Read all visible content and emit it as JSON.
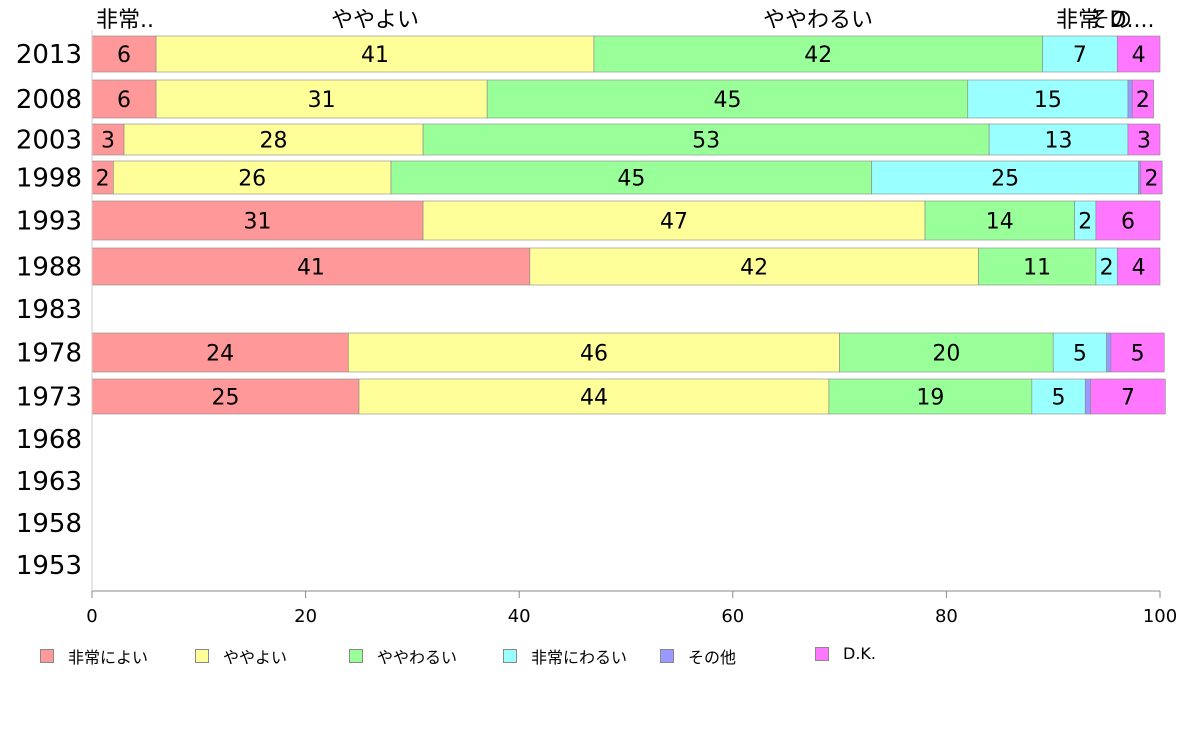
{
  "chart_data": {
    "type": "bar",
    "orientation": "horizontal",
    "stacked": true,
    "title": "",
    "xlabel": "",
    "ylabel": "",
    "xlim": [
      0,
      100
    ],
    "x_ticks": [
      "0",
      "20",
      "40",
      "60",
      "80",
      "100"
    ],
    "categories": [
      "2013",
      "2008",
      "2003",
      "1998",
      "1993",
      "1988",
      "1983",
      "1978",
      "1973",
      "1968",
      "1963",
      "1958",
      "1953"
    ],
    "series": [
      {
        "name": "非常によい",
        "color": "#ff9999",
        "values": [
          6,
          6,
          3,
          2,
          31,
          41,
          null,
          24,
          25,
          null,
          null,
          null,
          null
        ]
      },
      {
        "name": "ややよい",
        "color": "#ffff99",
        "values": [
          41,
          31,
          28,
          26,
          47,
          42,
          null,
          46,
          44,
          null,
          null,
          null,
          null
        ]
      },
      {
        "name": "ややわるい",
        "color": "#99ff99",
        "values": [
          42,
          45,
          53,
          45,
          14,
          11,
          null,
          20,
          19,
          null,
          null,
          null,
          null
        ]
      },
      {
        "name": "非常にわるい",
        "color": "#99ffff",
        "values": [
          7,
          15,
          13,
          25,
          2,
          2,
          null,
          5,
          5,
          null,
          null,
          null,
          null
        ]
      },
      {
        "name": "その他",
        "color": "#9999ff",
        "values": [
          0,
          0.4,
          0,
          0.2,
          0,
          0,
          null,
          0.4,
          0.5,
          null,
          null,
          null,
          null
        ]
      },
      {
        "name": "D.K.",
        "color": "#ff77ff",
        "values": [
          4,
          2,
          3,
          2,
          6,
          4,
          null,
          5,
          7,
          null,
          null,
          null,
          null
        ]
      }
    ],
    "top_labels": [
      "非常..",
      "ややよい",
      "ややわるい",
      "非常",
      "その",
      "D...."
    ],
    "legend_position": "bottom",
    "grid": false
  }
}
